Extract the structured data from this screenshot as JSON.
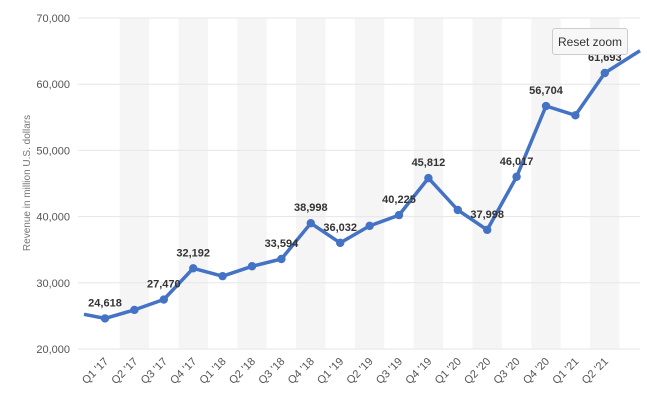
{
  "chart_data": {
    "type": "line",
    "title": "",
    "xlabel": "",
    "ylabel": "Revenue in million U.S. dollars",
    "ylim": [
      20000,
      70000
    ],
    "yticks": [
      20000,
      30000,
      40000,
      50000,
      60000,
      70000
    ],
    "ytick_labels": [
      "20,000",
      "30,000",
      "40,000",
      "50,000",
      "60,000",
      "70,000"
    ],
    "categories": [
      "Q1 '17",
      "Q2 '17",
      "Q3 '17",
      "Q4 '17",
      "Q1 '18",
      "Q2 '18",
      "Q3 '18",
      "Q4 '18",
      "Q1 '19",
      "Q2 '19",
      "Q3 '19",
      "Q4 '19",
      "Q1 '20",
      "Q2 '20",
      "Q3 '20",
      "Q4 '20",
      "Q1 '21",
      "Q2 '21"
    ],
    "series": [
      {
        "values": [
          24618,
          25900,
          27470,
          32192,
          31000,
          32500,
          33594,
          38998,
          36032,
          38600,
          40225,
          45812,
          41000,
          37998,
          46017,
          56704,
          55300,
          61693
        ]
      }
    ],
    "partial_points": {
      "before_first": 25500,
      "after_last": 64500
    },
    "data_labels": [
      {
        "index": 0,
        "text": "24,618"
      },
      {
        "index": 2,
        "text": "27,470"
      },
      {
        "index": 3,
        "text": "32,192"
      },
      {
        "index": 6,
        "text": "33,594"
      },
      {
        "index": 7,
        "text": "38,998"
      },
      {
        "index": 8,
        "text": "36,032"
      },
      {
        "index": 10,
        "text": "40,225"
      },
      {
        "index": 11,
        "text": "45,812"
      },
      {
        "index": 13,
        "text": "37,998"
      },
      {
        "index": 14,
        "text": "46,017"
      },
      {
        "index": 15,
        "text": "56,704"
      },
      {
        "index": 17,
        "text": "61,693"
      }
    ],
    "line_color": "#4472c4",
    "band_color": "#f5f5f5",
    "grid": true,
    "legend": "none"
  },
  "controls": {
    "reset_zoom_label": "Reset zoom"
  }
}
